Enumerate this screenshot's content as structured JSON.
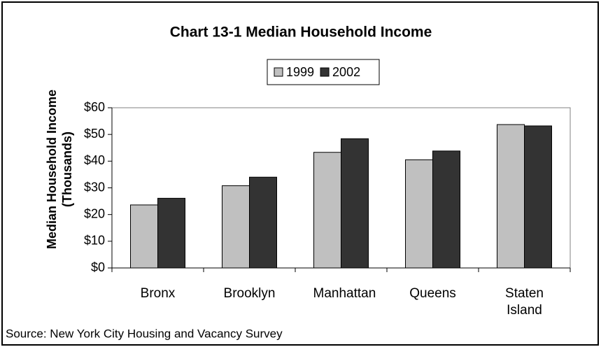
{
  "chart_data": {
    "type": "bar",
    "title": "Chart 13-1 Median Household Income",
    "y_label": [
      "Median Household Income",
      "(Thousands)"
    ],
    "source": "Source: New York City Housing and Vacancy Survey",
    "categories": [
      "Bronx",
      "Brooklyn",
      "Manhattan",
      "Queens",
      "Staten Island"
    ],
    "series": [
      {
        "name": "1999",
        "color": "#c0c0c0",
        "values": [
          23.6,
          30.8,
          43.3,
          40.5,
          53.7
        ]
      },
      {
        "name": "2002",
        "color": "#333333",
        "values": [
          26.1,
          34.0,
          48.4,
          43.8,
          53.2
        ]
      }
    ],
    "ylim": [
      0,
      60
    ],
    "yticks": [
      {
        "value": 0,
        "label": "$0"
      },
      {
        "value": 10,
        "label": "$10"
      },
      {
        "value": 20,
        "label": "$20"
      },
      {
        "value": 30,
        "label": "$30"
      },
      {
        "value": 40,
        "label": "$40"
      },
      {
        "value": 50,
        "label": "$50"
      },
      {
        "value": 60,
        "label": "$60"
      }
    ],
    "legend": "top"
  }
}
